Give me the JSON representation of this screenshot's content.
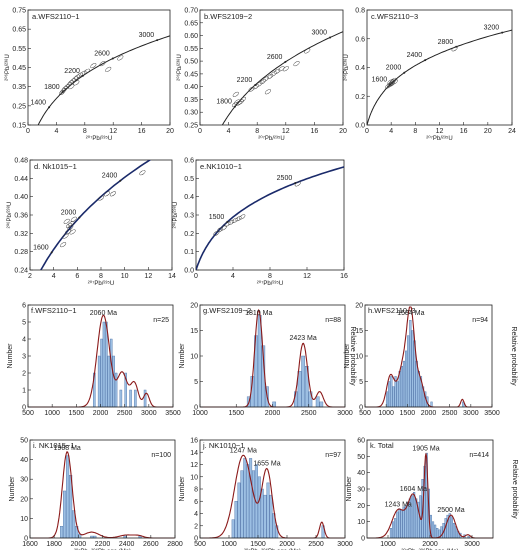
{
  "figure": {
    "rel_prob_label": "Relative probability",
    "number_label": "Number"
  },
  "chart_data": [
    {
      "type": "scatter",
      "title": "a.WFS2110−1",
      "xlabel": "²⁰⁷Pb/²³⁵U",
      "ylabel": "²⁰⁶Pb/²³⁸U",
      "xlim": [
        0,
        20
      ],
      "ylim": [
        0.15,
        0.75
      ],
      "xticks": [
        "0",
        "4",
        "8",
        "12",
        "16",
        "20"
      ],
      "yticks": [
        "0.15",
        "0.25",
        "0.35",
        "0.45",
        "0.55",
        "0.65",
        "0.75"
      ],
      "concordia_labels": [
        "1400",
        "1800",
        "2200",
        "2600",
        "3000"
      ],
      "concordia_ages": [
        1400,
        1800,
        2200,
        2600,
        3000
      ],
      "points": [
        [
          4.8,
          0.32
        ],
        [
          5.2,
          0.34
        ],
        [
          5.5,
          0.35
        ],
        [
          5.8,
          0.36
        ],
        [
          6.0,
          0.37
        ],
        [
          6.3,
          0.38
        ],
        [
          6.6,
          0.39
        ],
        [
          6.9,
          0.4
        ],
        [
          7.3,
          0.41
        ],
        [
          7.8,
          0.42
        ],
        [
          8.3,
          0.43
        ],
        [
          5.0,
          0.33
        ],
        [
          6.1,
          0.35
        ],
        [
          6.8,
          0.37
        ],
        [
          9.2,
          0.46
        ],
        [
          10.5,
          0.47
        ],
        [
          13.0,
          0.5
        ],
        [
          11.3,
          0.44
        ]
      ]
    },
    {
      "type": "scatter",
      "title": "b.WFS2109−2",
      "xlabel": "²⁰⁷Pb/²³⁵U",
      "ylabel": "²⁰⁶Pb/²³⁸U",
      "xlim": [
        0,
        20
      ],
      "ylim": [
        0.25,
        0.7
      ],
      "xticks": [
        "0",
        "4",
        "8",
        "12",
        "16",
        "20"
      ],
      "yticks": [
        "0.25",
        "0.30",
        "0.35",
        "0.40",
        "0.45",
        "0.50",
        "0.55",
        "0.60",
        "0.65",
        "0.70"
      ],
      "concordia_labels": [
        "1800",
        "2200",
        "2600",
        "3000"
      ],
      "concordia_ages": [
        1800,
        2200,
        2600,
        3000
      ],
      "points": [
        [
          4.9,
          0.33
        ],
        [
          5.2,
          0.34
        ],
        [
          5.4,
          0.335
        ],
        [
          5.7,
          0.34
        ],
        [
          6.0,
          0.35
        ],
        [
          7.2,
          0.39
        ],
        [
          7.8,
          0.4
        ],
        [
          8.3,
          0.41
        ],
        [
          8.8,
          0.42
        ],
        [
          9.2,
          0.43
        ],
        [
          9.8,
          0.44
        ],
        [
          10.3,
          0.45
        ],
        [
          10.8,
          0.46
        ],
        [
          11.4,
          0.47
        ],
        [
          12.0,
          0.47
        ],
        [
          13.5,
          0.49
        ],
        [
          15.0,
          0.54
        ],
        [
          9.5,
          0.38
        ],
        [
          5.0,
          0.37
        ]
      ]
    },
    {
      "type": "scatter",
      "title": "c.WFS2110−3",
      "xlabel": "²⁰⁷Pb/²³⁵U",
      "ylabel": "²⁰⁶Pb/²³⁸U",
      "xlim": [
        0,
        24
      ],
      "ylim": [
        0.0,
        0.8
      ],
      "xticks": [
        "0",
        "4",
        "8",
        "12",
        "16",
        "20",
        "24"
      ],
      "yticks": [
        "0.0",
        "0.2",
        "0.4",
        "0.6",
        "0.8"
      ],
      "concordia_labels": [
        "1600",
        "2000",
        "2400",
        "2800",
        "3200"
      ],
      "concordia_ages": [
        1600,
        2000,
        2400,
        2800,
        3200
      ],
      "points": [
        [
          3.5,
          0.27
        ],
        [
          3.8,
          0.28
        ],
        [
          4.0,
          0.29
        ],
        [
          4.2,
          0.3
        ],
        [
          4.4,
          0.31
        ],
        [
          4.1,
          0.285
        ],
        [
          3.9,
          0.3
        ],
        [
          4.6,
          0.3
        ],
        [
          14.5,
          0.53
        ]
      ]
    },
    {
      "type": "scatter",
      "title": "d. Nk1015−1",
      "xlabel": "²⁰⁷Pb/²³⁵U",
      "ylabel": "²⁰⁶Pb/²³⁸U",
      "xlim": [
        2,
        14
      ],
      "ylim": [
        0.24,
        0.5
      ],
      "xticks": [
        "2",
        "4",
        "6",
        "8",
        "10",
        "12",
        "14"
      ],
      "yticks": [
        "0.24",
        "0.28",
        "0.32",
        "0.36",
        "0.40",
        "0.44",
        "0.48"
      ],
      "concordia_labels": [
        "1600",
        "2000",
        "2400"
      ],
      "concordia_ages": [
        1600,
        2000,
        2400
      ],
      "points": [
        [
          5.0,
          0.32
        ],
        [
          5.2,
          0.33
        ],
        [
          5.4,
          0.34
        ],
        [
          5.5,
          0.35
        ],
        [
          5.7,
          0.36
        ],
        [
          5.3,
          0.345
        ],
        [
          5.6,
          0.33
        ],
        [
          5.1,
          0.355
        ],
        [
          8.0,
          0.41
        ],
        [
          8.5,
          0.42
        ],
        [
          9.0,
          0.42
        ],
        [
          11.5,
          0.47
        ],
        [
          4.8,
          0.3
        ]
      ]
    },
    {
      "type": "scatter",
      "title": "e.NK1010−1",
      "xlabel": "²⁰⁷Pb/²³⁵U",
      "ylabel": "²⁰⁶Pb/²³⁸U",
      "xlim": [
        0,
        16
      ],
      "ylim": [
        0.0,
        0.6
      ],
      "xticks": [
        "0",
        "4",
        "8",
        "12",
        "16"
      ],
      "yticks": [
        "0.0",
        "0.1",
        "0.2",
        "0.3",
        "0.4",
        "0.5",
        "0.6"
      ],
      "concordia_labels": [
        "1500",
        "2500"
      ],
      "concordia_ages": [
        1500,
        2500
      ],
      "points": [
        [
          2.2,
          0.2
        ],
        [
          2.6,
          0.22
        ],
        [
          3.0,
          0.23
        ],
        [
          3.4,
          0.25
        ],
        [
          3.8,
          0.26
        ],
        [
          4.2,
          0.27
        ],
        [
          4.6,
          0.28
        ],
        [
          5.0,
          0.29
        ],
        [
          11.0,
          0.47
        ]
      ]
    },
    {
      "type": "bar",
      "title": "f.WFS2110−1",
      "n_label": "n=25",
      "peak_labels": [
        {
          "text": "2060  Ma",
          "age": 2060
        }
      ],
      "xticks": [
        "500",
        "1000",
        "1500",
        "2000",
        "2500",
        "3000",
        "3500"
      ],
      "xlim": [
        500,
        3500
      ],
      "ylim": [
        0,
        6
      ],
      "yticks": [
        "0",
        "1",
        "2",
        "3",
        "4",
        "5",
        "6"
      ],
      "bin_width": 50,
      "bins": [
        [
          1850,
          2
        ],
        [
          1950,
          3
        ],
        [
          2000,
          4
        ],
        [
          2050,
          5
        ],
        [
          2100,
          5
        ],
        [
          2150,
          3
        ],
        [
          2200,
          4
        ],
        [
          2250,
          3
        ],
        [
          2300,
          2
        ],
        [
          2400,
          1
        ],
        [
          2500,
          2
        ],
        [
          2600,
          1
        ],
        [
          2700,
          1
        ],
        [
          2900,
          1
        ]
      ],
      "pdf_peaks": [
        [
          2060,
          5.4,
          130
        ],
        [
          2450,
          2.0,
          100
        ],
        [
          2700,
          1.4,
          80
        ],
        [
          2950,
          0.8,
          60
        ]
      ]
    },
    {
      "type": "bar",
      "title": "g.WFS2109−2",
      "n_label": "n=88",
      "peak_labels": [
        {
          "text": "1810 Ma",
          "age": 1810
        },
        {
          "text": "2423 Ma",
          "age": 2423
        }
      ],
      "xticks": [
        "1000",
        "1500",
        "2000",
        "2500",
        "3000"
      ],
      "xlim": [
        1000,
        3000
      ],
      "ylim": [
        0,
        20
      ],
      "yticks": [
        "0",
        "5",
        "10",
        "15",
        "20"
      ],
      "bin_width": 50,
      "bins": [
        [
          1650,
          2
        ],
        [
          1700,
          6
        ],
        [
          1750,
          14
        ],
        [
          1800,
          18
        ],
        [
          1850,
          12
        ],
        [
          1900,
          4
        ],
        [
          2000,
          1
        ],
        [
          2300,
          3
        ],
        [
          2350,
          7
        ],
        [
          2400,
          10
        ],
        [
          2450,
          8
        ],
        [
          2500,
          3
        ],
        [
          2600,
          2
        ],
        [
          2650,
          1
        ]
      ],
      "pdf_peaks": [
        [
          1810,
          19,
          55
        ],
        [
          2423,
          12.5,
          60
        ],
        [
          2650,
          3,
          50
        ]
      ]
    },
    {
      "type": "bar",
      "title": "h.WFS2110−3",
      "n_label": "n=94",
      "peak_labels": [
        {
          "text": "1584 Ma",
          "age": 1584
        }
      ],
      "xticks": [
        "500",
        "1000",
        "1500",
        "2000",
        "2500",
        "3000",
        "3500"
      ],
      "xlim": [
        500,
        3500
      ],
      "ylim": [
        0,
        20
      ],
      "yticks": [
        "0",
        "5",
        "10",
        "15",
        "20"
      ],
      "bin_width": 50,
      "bins": [
        [
          1000,
          3
        ],
        [
          1050,
          5
        ],
        [
          1100,
          6
        ],
        [
          1150,
          4
        ],
        [
          1200,
          6
        ],
        [
          1250,
          5
        ],
        [
          1300,
          7
        ],
        [
          1350,
          8
        ],
        [
          1400,
          9
        ],
        [
          1450,
          11
        ],
        [
          1500,
          14
        ],
        [
          1550,
          17
        ],
        [
          1600,
          15
        ],
        [
          1650,
          13
        ],
        [
          1700,
          9
        ],
        [
          1750,
          7
        ],
        [
          1800,
          6
        ],
        [
          1850,
          4
        ],
        [
          1900,
          3
        ],
        [
          1950,
          2
        ],
        [
          2050,
          1
        ],
        [
          2800,
          1
        ]
      ],
      "pdf_peaks": [
        [
          1100,
          6,
          90
        ],
        [
          1400,
          8,
          120
        ],
        [
          1584,
          17,
          90
        ],
        [
          1800,
          5,
          90
        ],
        [
          2800,
          1.5,
          40
        ]
      ]
    },
    {
      "type": "bar",
      "title": "i. NK1015−1",
      "n_label": "n=100",
      "peak_labels": [
        {
          "text": "1908  Ma",
          "age": 1908
        }
      ],
      "xticks": [
        "1600",
        "1800",
        "2000",
        "2200",
        "2400",
        "2600",
        "2800"
      ],
      "xlim": [
        1600,
        2800
      ],
      "ylim": [
        0,
        50
      ],
      "yticks": [
        "0",
        "10",
        "20",
        "30",
        "40",
        "50"
      ],
      "bin_width": 25,
      "bins": [
        [
          1850,
          6
        ],
        [
          1875,
          24
        ],
        [
          1900,
          42
        ],
        [
          1925,
          32
        ],
        [
          1950,
          14
        ],
        [
          1975,
          6
        ],
        [
          2000,
          2
        ],
        [
          2100,
          1
        ],
        [
          2125,
          1
        ],
        [
          2375,
          1
        ],
        [
          2500,
          1
        ]
      ],
      "pdf_peaks": [
        [
          1908,
          44,
          40
        ],
        [
          2110,
          3,
          60
        ],
        [
          2400,
          1.5,
          60
        ],
        [
          2500,
          1,
          40
        ]
      ]
    },
    {
      "type": "bar",
      "title": "j. NK1010−1",
      "n_label": "n=97",
      "peak_labels": [
        {
          "text": "1247 Ma",
          "age": 1247
        },
        {
          "text": "1655 Ma",
          "age": 1655
        }
      ],
      "xticks": [
        "500",
        "1000",
        "1500",
        "2000",
        "2500",
        "3000"
      ],
      "xlim": [
        500,
        3000
      ],
      "ylim": [
        0,
        16
      ],
      "yticks": [
        "0",
        "2",
        "4",
        "6",
        "8",
        "10",
        "12",
        "14",
        "16"
      ],
      "bin_width": 50,
      "bins": [
        [
          1050,
          3
        ],
        [
          1100,
          6
        ],
        [
          1150,
          9
        ],
        [
          1200,
          11
        ],
        [
          1250,
          13
        ],
        [
          1300,
          12
        ],
        [
          1350,
          13
        ],
        [
          1400,
          11
        ],
        [
          1450,
          12
        ],
        [
          1500,
          10
        ],
        [
          1550,
          8
        ],
        [
          1600,
          7
        ],
        [
          1650,
          9
        ],
        [
          1700,
          7
        ],
        [
          1750,
          4
        ],
        [
          1800,
          2
        ],
        [
          2600,
          2
        ]
      ],
      "pdf_peaks": [
        [
          1247,
          13.5,
          150
        ],
        [
          1655,
          11,
          90
        ],
        [
          2600,
          2.6,
          40
        ]
      ]
    },
    {
      "type": "bar",
      "title": "k. Total",
      "n_label": "n=414",
      "peak_labels": [
        {
          "text": "1905 Ma",
          "age": 1905
        },
        {
          "text": "1604 Ma",
          "age": 1604
        },
        {
          "text": "1243 Ma",
          "age": 1243
        },
        {
          "text": "2500 Ma",
          "age": 2500
        }
      ],
      "xticks": [
        "1000",
        "2000",
        "3000"
      ],
      "xlim": [
        500,
        3500
      ],
      "ylim": [
        0,
        60
      ],
      "yticks": [
        "0",
        "10",
        "20",
        "30",
        "40",
        "50",
        "60"
      ],
      "bin_width": 50,
      "bins": [
        [
          1050,
          6
        ],
        [
          1100,
          10
        ],
        [
          1150,
          12
        ],
        [
          1200,
          16
        ],
        [
          1250,
          18
        ],
        [
          1300,
          17
        ],
        [
          1350,
          19
        ],
        [
          1400,
          20
        ],
        [
          1450,
          22
        ],
        [
          1500,
          24
        ],
        [
          1550,
          26
        ],
        [
          1600,
          28
        ],
        [
          1650,
          24
        ],
        [
          1700,
          22
        ],
        [
          1750,
          26
        ],
        [
          1800,
          36
        ],
        [
          1850,
          44
        ],
        [
          1900,
          52
        ],
        [
          1950,
          30
        ],
        [
          2000,
          14
        ],
        [
          2050,
          10
        ],
        [
          2100,
          8
        ],
        [
          2150,
          6
        ],
        [
          2200,
          5
        ],
        [
          2250,
          7
        ],
        [
          2300,
          9
        ],
        [
          2350,
          12
        ],
        [
          2400,
          14
        ],
        [
          2450,
          15
        ],
        [
          2500,
          13
        ],
        [
          2550,
          9
        ],
        [
          2600,
          7
        ],
        [
          2650,
          4
        ],
        [
          2700,
          3
        ],
        [
          2800,
          2
        ],
        [
          2900,
          1
        ]
      ],
      "pdf_peaks": [
        [
          1243,
          17,
          150
        ],
        [
          1604,
          26,
          130
        ],
        [
          1905,
          50,
          45
        ],
        [
          2500,
          14,
          110
        ],
        [
          2900,
          2,
          60
        ]
      ]
    }
  ]
}
